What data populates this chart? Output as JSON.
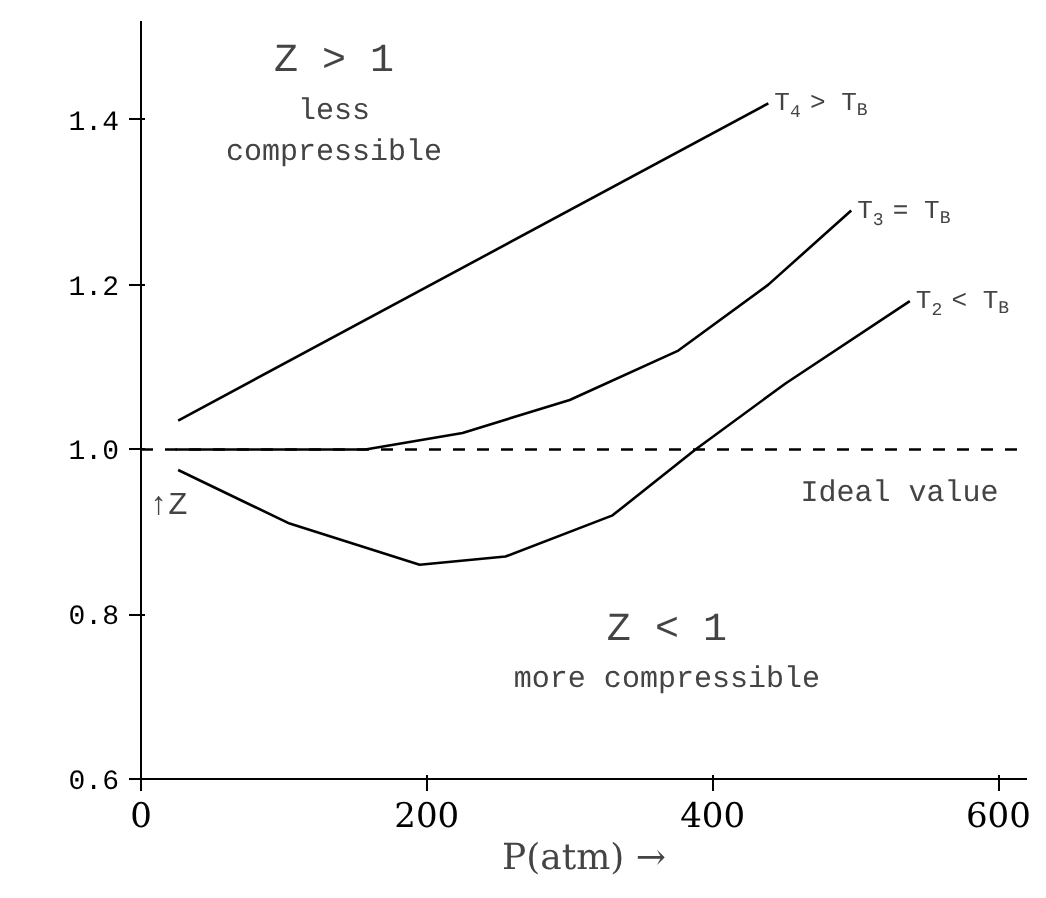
{
  "chart_data": {
    "type": "line",
    "xlabel": "P(atm) →",
    "ylabel": "↑Z",
    "xlim": [
      0,
      620
    ],
    "ylim": [
      0.6,
      1.52
    ],
    "xticks": [
      0,
      200,
      400,
      600
    ],
    "yticks": [
      0.6,
      0.8,
      {
        "value": 1.0,
        "label": "1.0"
      },
      1.2,
      1.4
    ],
    "grid": false,
    "marker": "none",
    "line_style": "solid",
    "series": [
      {
        "name": "T$_{4}$ > T$_{B}$",
        "color": "#000000",
        "x": [
          26,
          439
        ],
        "values": [
          1.035,
          1.42
        ]
      },
      {
        "name": "T$_{3}$ = T$_{B}$",
        "color": "#000000",
        "x": [
          24,
          157,
          225,
          300,
          376,
          439,
          497
        ],
        "values": [
          1.0,
          1.0,
          1.02,
          1.06,
          1.12,
          1.2,
          1.29
        ]
      },
      {
        "name": "T$_{2}$ < T$_{B}$",
        "color": "#000000",
        "x": [
          26,
          104,
          195,
          255,
          330,
          388,
          451,
          538
        ],
        "values": [
          0.975,
          0.91,
          0.86,
          0.87,
          0.92,
          1.0,
          1.08,
          1.18
        ]
      }
    ],
    "ref_lines": [
      {
        "axis": "y",
        "value": 1.0,
        "label": "Ideal value",
        "color": "#000000",
        "line_style": "dashed"
      }
    ],
    "annotations": [
      "Z > 1",
      "less",
      "compressible",
      "Z < 1",
      "more compressible"
    ]
  }
}
